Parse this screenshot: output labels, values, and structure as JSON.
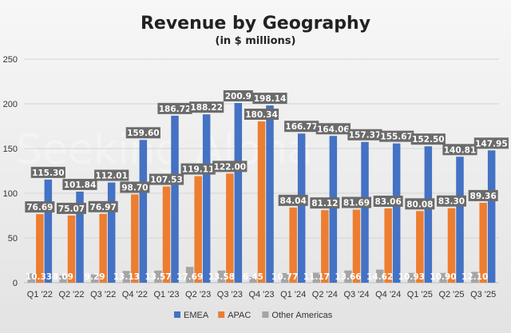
{
  "chart_data": {
    "type": "bar",
    "title": "Revenue by Geography",
    "subtitle": "(in $ millions)",
    "watermark": "Seeking Alpha",
    "categories": [
      "Q1 '22",
      "Q2 '22",
      "Q3 '22",
      "Q4 '22",
      "Q1 '23",
      "Q2 '23",
      "Q3 '23",
      "Q4 '23",
      "Q1 '24",
      "Q2 '24",
      "Q3 '24",
      "Q4 '24",
      "Q1 '25",
      "Q2 '25",
      "Q3 '25"
    ],
    "ylim": [
      0,
      250
    ],
    "yticks": [
      0,
      50,
      100,
      150,
      200,
      250
    ],
    "grid": true,
    "legend_position": "bottom",
    "series": [
      {
        "name": "Other Americas",
        "color": "#a5a5a5",
        "values": [
          10.33,
          8.09,
          9.29,
          13.13,
          13.57,
          17.69,
          13.58,
          6.45,
          10.77,
          11.17,
          13.66,
          14.62,
          10.93,
          10.9,
          12.1
        ],
        "labels": [
          "10.33",
          "8.09",
          "9.29",
          "13.13",
          "13.57",
          "17.69",
          "13.58",
          "6.45",
          "10.77",
          "11.17",
          "13.66",
          "14.62",
          "10.93",
          "10.90",
          "12.10"
        ]
      },
      {
        "name": "APAC",
        "color": "#ed7d31",
        "values": [
          76.69,
          75.07,
          76.97,
          98.7,
          107.53,
          119.11,
          122.0,
          180.34,
          84.04,
          81.12,
          81.69,
          83.06,
          80.08,
          83.3,
          89.36
        ],
        "labels": [
          "76.69",
          "75.07",
          "76.97",
          "98.70",
          "107.53",
          "119.11",
          "122.00",
          "180.34",
          "84.04",
          "81.12",
          "81.69",
          "83.06",
          "80.08",
          "83.30",
          "89.36"
        ]
      },
      {
        "name": "EMEA",
        "color": "#4472c4",
        "values": [
          115.3,
          101.84,
          112.01,
          159.6,
          186.72,
          188.22,
          200.9,
          198.14,
          166.77,
          164.06,
          157.37,
          155.67,
          152.5,
          140.81,
          147.95
        ],
        "labels": [
          "115.30",
          "101.84",
          "112.01",
          "159.60",
          "186.72",
          "188.22",
          "200.9",
          "198.14",
          "166.77",
          "164.06",
          "157.37",
          "155.67",
          "152.50",
          "140.81",
          "147.95"
        ]
      }
    ],
    "legend_order": [
      "EMEA",
      "APAC",
      "Other Americas"
    ]
  }
}
